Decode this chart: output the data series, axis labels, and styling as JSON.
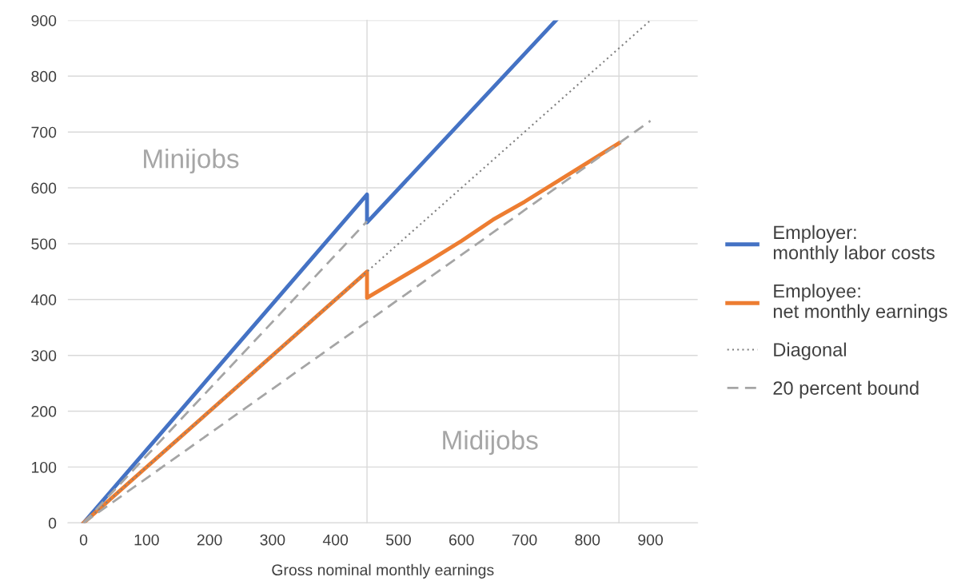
{
  "chart_data": {
    "type": "line",
    "xlabel": "Gross nominal monthly earnings",
    "xlim": [
      -25,
      975
    ],
    "ylim": [
      0,
      900
    ],
    "xticks": [
      0,
      100,
      200,
      300,
      400,
      500,
      600,
      700,
      800,
      900
    ],
    "yticks": [
      0,
      100,
      200,
      300,
      400,
      500,
      600,
      700,
      800,
      900
    ],
    "grid": "y",
    "legend": "right",
    "series": [
      {
        "name": "Employer:\nmonthly labor costs",
        "color": "#4472c4",
        "line_style": "solid",
        "x": [
          0,
          450,
          450,
          750
        ],
        "values": [
          0,
          588,
          538,
          900
        ]
      },
      {
        "name": "Employee:\nnet monthly earnings",
        "color": "#ed7d31",
        "line_style": "solid",
        "x": [
          0,
          450,
          450,
          550,
          600,
          650,
          700,
          800,
          850
        ],
        "values": [
          0,
          450,
          403,
          470,
          505,
          543,
          575,
          645,
          680
        ]
      },
      {
        "name": "Diagonal",
        "color": "#808080",
        "line_style": "dotted",
        "x": [
          0,
          900
        ],
        "values": [
          0,
          900
        ]
      },
      {
        "color": "#a5a5a5",
        "line_style": "dashed",
        "x": [
          0,
          450
        ],
        "values": [
          0,
          540
        ]
      },
      {
        "name": "20 percent bound",
        "color": "#a5a5a5",
        "line_style": "dashed",
        "x": [
          0,
          900
        ],
        "values": [
          0,
          720
        ]
      }
    ],
    "ref_lines": [
      {
        "axis": "x",
        "value": 450,
        "label": null,
        "color": "#d9d9d9"
      },
      {
        "axis": "x",
        "value": 850,
        "label": null,
        "color": "#d9d9d9"
      }
    ],
    "annotations": [
      "Minijobs",
      "Midijobs"
    ]
  }
}
